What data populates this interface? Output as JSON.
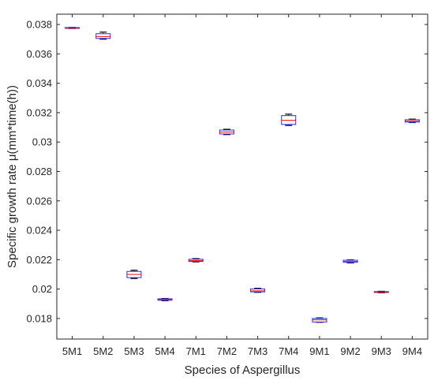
{
  "chart_data": {
    "type": "box",
    "title": "",
    "xlabel": "Species of Aspergillus",
    "ylabel": "Specific growth rate μ(mm*time(h))",
    "ylim": [
      0.0166,
      0.0387
    ],
    "yticks": [
      0.018,
      0.02,
      0.022,
      0.024,
      0.026,
      0.028,
      0.03,
      0.032,
      0.034,
      0.036,
      0.038
    ],
    "ytick_labels": [
      "0.018",
      "0.02",
      "0.022",
      "0.024",
      "0.026",
      "0.028",
      "0.03",
      "0.032",
      "0.034",
      "0.036",
      "0.038"
    ],
    "grid": false,
    "categories": [
      "5M1",
      "5M2",
      "5M3",
      "5M4",
      "7M1",
      "7M2",
      "7M3",
      "7M4",
      "9M1",
      "9M2",
      "9M3",
      "9M4"
    ],
    "boxes": [
      {
        "min": 0.03773,
        "q1": 0.03774,
        "median": 0.03776,
        "q3": 0.03779,
        "max": 0.0378
      },
      {
        "min": 0.037,
        "q1": 0.03705,
        "median": 0.03718,
        "q3": 0.03737,
        "max": 0.03748
      },
      {
        "min": 0.02072,
        "q1": 0.02078,
        "median": 0.021,
        "q3": 0.0212,
        "max": 0.02128
      },
      {
        "min": 0.01921,
        "q1": 0.01924,
        "median": 0.01929,
        "q3": 0.01934,
        "max": 0.01936
      },
      {
        "min": 0.02185,
        "q1": 0.02188,
        "median": 0.02194,
        "q3": 0.02203,
        "max": 0.02207
      },
      {
        "min": 0.03051,
        "q1": 0.03055,
        "median": 0.03069,
        "q3": 0.03082,
        "max": 0.03087
      },
      {
        "min": 0.01978,
        "q1": 0.01981,
        "median": 0.01988,
        "q3": 0.02001,
        "max": 0.02005
      },
      {
        "min": 0.03113,
        "q1": 0.0312,
        "median": 0.03148,
        "q3": 0.0318,
        "max": 0.0319
      },
      {
        "min": 0.01774,
        "q1": 0.01776,
        "median": 0.01791,
        "q3": 0.018,
        "max": 0.01804
      },
      {
        "min": 0.02178,
        "q1": 0.02182,
        "median": 0.02188,
        "q3": 0.02196,
        "max": 0.02199
      },
      {
        "min": 0.01975,
        "q1": 0.01977,
        "median": 0.0198,
        "q3": 0.01983,
        "max": 0.01985
      },
      {
        "min": 0.03133,
        "q1": 0.03136,
        "median": 0.03143,
        "q3": 0.03152,
        "max": 0.03156
      }
    ],
    "colors": {
      "box": "#2b2bf0",
      "median": "#ff0000",
      "axis": "#262626"
    }
  }
}
